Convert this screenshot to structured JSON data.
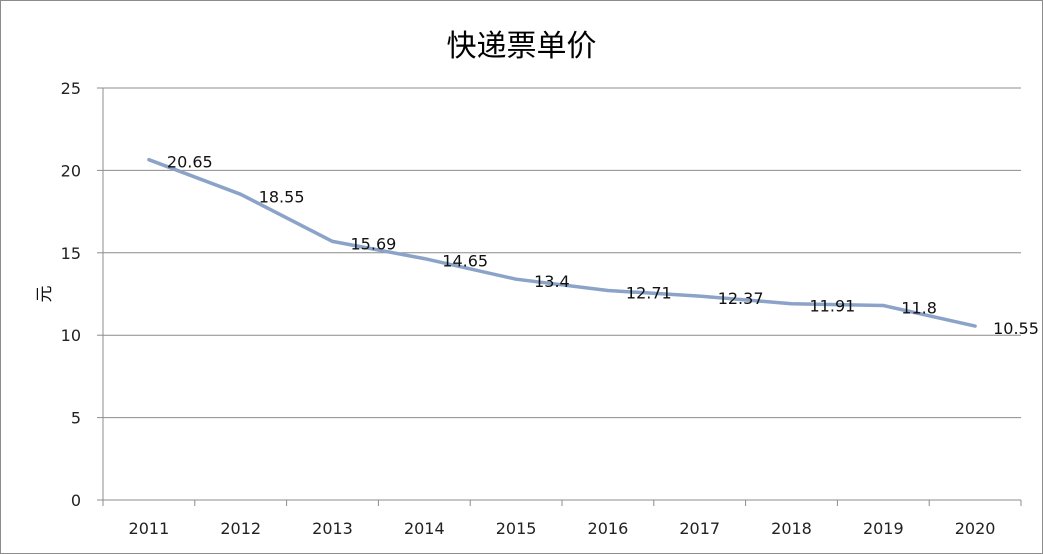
{
  "chart_data": {
    "type": "line",
    "title": "快递票单价",
    "xlabel": "",
    "ylabel": "元",
    "categories": [
      "2011",
      "2012",
      "2013",
      "2014",
      "2015",
      "2016",
      "2017",
      "2018",
      "2019",
      "2020"
    ],
    "series": [
      {
        "values": [
          20.65,
          18.55,
          15.69,
          14.65,
          13.4,
          12.71,
          12.37,
          11.91,
          11.8,
          10.55
        ]
      }
    ],
    "data_labels": [
      "20.65",
      "18.55",
      "15.69",
      "14.65",
      "13.4",
      "12.71",
      "12.37",
      "11.91",
      "11.8",
      "10.55"
    ],
    "ylim": [
      0,
      25
    ],
    "yticks": [
      0,
      5,
      10,
      15,
      20,
      25
    ],
    "grid": true,
    "legend": "none",
    "line_color": "#8ba3c8",
    "grid_color": "#8c8c8c"
  }
}
